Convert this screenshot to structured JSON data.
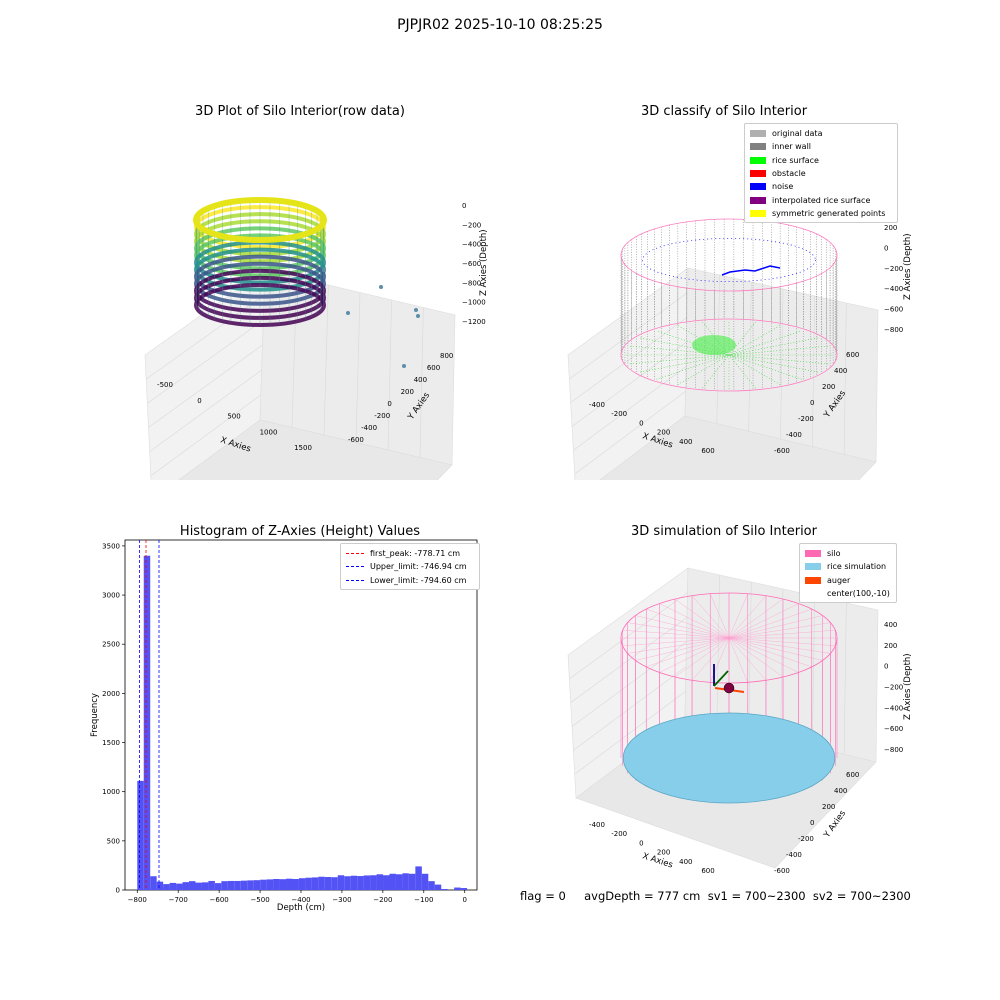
{
  "suptitle": "PJPJR02 2025-10-10 08:25:25",
  "panels": {
    "raw": {
      "title": "3D Plot of Silo Interior(row data)",
      "xlabel": "X Axies",
      "ylabel": "Y Axies",
      "zlabel": "Z Axies (Depth)",
      "xticks": [
        "-500",
        "0",
        "500",
        "1000",
        "1500"
      ],
      "yticks": [
        "-600",
        "-400",
        "-200",
        "0",
        "200",
        "400",
        "600",
        "800"
      ],
      "zticks": [
        "0",
        "−200",
        "−400",
        "−600",
        "−800",
        "−1000",
        "−1200"
      ]
    },
    "classify": {
      "title": "3D classify of Silo Interior",
      "xlabel": "X Axies",
      "ylabel": "Y Axies",
      "zlabel": "Z Axies (Depth)",
      "xticks": [
        "-400",
        "-200",
        "0",
        "200",
        "400",
        "600"
      ],
      "yticks": [
        "-600",
        "-400",
        "-200",
        "0",
        "200",
        "400",
        "600"
      ],
      "zticks": [
        "200",
        "0",
        "−200",
        "−400",
        "−600",
        "−800"
      ],
      "legend": [
        {
          "label": "original data",
          "color": "#b0b0b0"
        },
        {
          "label": "inner wall",
          "color": "#808080"
        },
        {
          "label": "rice surface",
          "color": "#00ff00"
        },
        {
          "label": "obstacle",
          "color": "#ff0000"
        },
        {
          "label": "noise",
          "color": "#0000ff"
        },
        {
          "label": "interpolated rice surface",
          "color": "#800080"
        },
        {
          "label": "symmetric generated points",
          "color": "#ffff00"
        }
      ]
    },
    "histogram": {
      "title": "Histogram of Z-Axies (Height) Values",
      "xlabel": "Depth (cm)",
      "ylabel": "Frequency",
      "legend": [
        {
          "label": "first_peak: -778.71 cm",
          "color": "#ff0000"
        },
        {
          "label": "Upper_limit: -746.94 cm",
          "color": "#0000ff"
        },
        {
          "label": "Lower_limit: -794.60 cm",
          "color": "#0000ff"
        }
      ]
    },
    "simulation": {
      "title": "3D simulation of Silo Interior",
      "xlabel": "X Axies",
      "ylabel": "Y Axies",
      "zlabel": "Z Axies (Depth)",
      "xticks": [
        "-400",
        "-200",
        "0",
        "200",
        "400",
        "600"
      ],
      "yticks": [
        "-600",
        "-400",
        "-200",
        "0",
        "200",
        "400",
        "600"
      ],
      "zticks": [
        "400",
        "200",
        "0",
        "−200",
        "−400",
        "−600",
        "−800"
      ],
      "legend": [
        {
          "label": "silo",
          "color": "#ff69b4"
        },
        {
          "label": "rice simulation",
          "color": "#87ceeb"
        },
        {
          "label": "auger",
          "color": "#ff4500"
        },
        {
          "label": "center(100,-10)",
          "color": ""
        }
      ]
    }
  },
  "footer": "flag = 0     avgDepth = 777 cm  sv1 = 700~2300  sv2 = 700~2300",
  "chart_data": [
    {
      "type": "scatter",
      "title": "3D Plot of Silo Interior(row data)",
      "xlabel": "X Axies",
      "ylabel": "Y Axies",
      "zlabel": "Z Axies (Depth)",
      "xlim": [
        -700,
        1800
      ],
      "ylim": [
        -700,
        900
      ],
      "zlim": [
        -1300,
        50
      ],
      "colormap": "viridis",
      "description_series": [
        {
          "name": "",
          "shape": "cylindrical wall",
          "x_range": [
            -400,
            600
          ],
          "y_range": [
            -550,
            550
          ],
          "z_range": [
            -1300,
            -100
          ]
        }
      ]
    },
    {
      "type": "scatter",
      "title": "3D classify of Silo Interior",
      "xlabel": "X Axies",
      "ylabel": "Y Axies",
      "zlabel": "Z Axies (Depth)",
      "xlim": [
        -550,
        750
      ],
      "ylim": [
        -650,
        650
      ],
      "zlim": [
        -900,
        300
      ],
      "series": [
        {
          "name": "inner wall",
          "region": "cylinder wall",
          "z_range": [
            -800,
            100
          ]
        },
        {
          "name": "rice surface",
          "region": "floor",
          "z": -780
        },
        {
          "name": "noise",
          "region": "scattered"
        },
        {
          "name": "symmetric generated points",
          "region": ""
        }
      ]
    },
    {
      "type": "bar",
      "title": "Histogram of Z-Axies (Height) Values",
      "xlabel": "Depth (cm)",
      "ylabel": "Frequency",
      "xlim": [
        -830,
        30
      ],
      "ylim": [
        0,
        3560
      ],
      "xticks": [
        -800,
        -700,
        -600,
        -500,
        -400,
        -300,
        -200,
        -100,
        0
      ],
      "yticks": [
        0,
        500,
        1000,
        1500,
        2000,
        2500,
        3000,
        3500
      ],
      "bin_width": 15.8,
      "bin_starts": [
        -800,
        -784.2,
        -768.4,
        -752.6,
        -736.8,
        -721,
        -705.2,
        -689.4,
        -673.6,
        -657.8,
        -642,
        -626.2,
        -610.4,
        -594.6,
        -578.8,
        -563,
        -547.2,
        -531.4,
        -515.6,
        -499.8,
        -484,
        -468.2,
        -452.4,
        -436.6,
        -420.8,
        -405,
        -389.2,
        -373.4,
        -357.6,
        -341.8,
        -326,
        -310.2,
        -294.4,
        -278.6,
        -262.8,
        -247,
        -231.2,
        -215.4,
        -199.6,
        -183.8,
        -168,
        -152.2,
        -136.4,
        -120.6,
        -104.8,
        -89,
        -73.2,
        -57.4,
        -41.6,
        -25.8,
        -10
      ],
      "values": [
        1110,
        3400,
        140,
        85,
        60,
        72,
        65,
        80,
        90,
        75,
        78,
        92,
        70,
        90,
        92,
        92,
        95,
        98,
        100,
        105,
        108,
        112,
        110,
        115,
        112,
        120,
        125,
        128,
        135,
        132,
        130,
        150,
        140,
        145,
        142,
        148,
        150,
        160,
        150,
        165,
        160,
        170,
        165,
        240,
        165,
        90,
        55,
        10,
        0,
        25,
        20
      ],
      "lines": [
        {
          "label": "first_peak: -778.71 cm",
          "x": -778.71,
          "color": "#ff0000",
          "style": "dashed"
        },
        {
          "label": "Upper_limit: -746.94 cm",
          "x": -746.94,
          "color": "#0000ff",
          "style": "dashed"
        },
        {
          "label": "Lower_limit: -794.60 cm",
          "x": -794.6,
          "color": "#0000ff",
          "style": "dashed"
        }
      ],
      "bar_color": "#5353f5",
      "legend_position": "upper right"
    },
    {
      "type": "scatter",
      "title": "3D simulation of Silo Interior",
      "xlabel": "X Axies",
      "ylabel": "Y Axies",
      "zlabel": "Z Axies (Depth)",
      "xlim": [
        -550,
        750
      ],
      "ylim": [
        -650,
        650
      ],
      "zlim": [
        -900,
        450
      ],
      "series": [
        {
          "name": "silo",
          "shape": "wireframe cylinder"
        },
        {
          "name": "rice simulation",
          "shape": "filled surface",
          "z": -780
        },
        {
          "name": "auger",
          "shape": "segment"
        },
        {
          "name": "center(100,-10)",
          "x": 100,
          "y": -10
        }
      ]
    }
  ]
}
